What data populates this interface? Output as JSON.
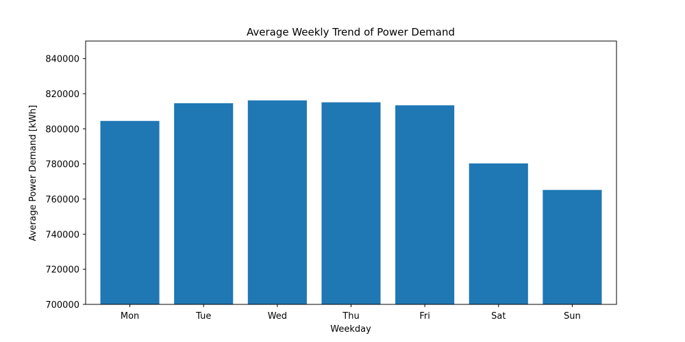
{
  "chart_data": {
    "type": "bar",
    "title": "Average Weekly Trend of Power Demand",
    "xlabel": "Weekday",
    "ylabel": "Average Power Demand [kWh]",
    "categories": [
      "Mon",
      "Tue",
      "Wed",
      "Thu",
      "Fri",
      "Sat",
      "Sun"
    ],
    "values": [
      804500,
      814600,
      816200,
      815100,
      813400,
      780300,
      765200
    ],
    "ylim": [
      700000,
      850000
    ],
    "yticks": [
      700000,
      720000,
      740000,
      760000,
      780000,
      800000,
      820000,
      840000
    ],
    "grid": false,
    "legend": false,
    "bar_color": "#1f77b4"
  }
}
